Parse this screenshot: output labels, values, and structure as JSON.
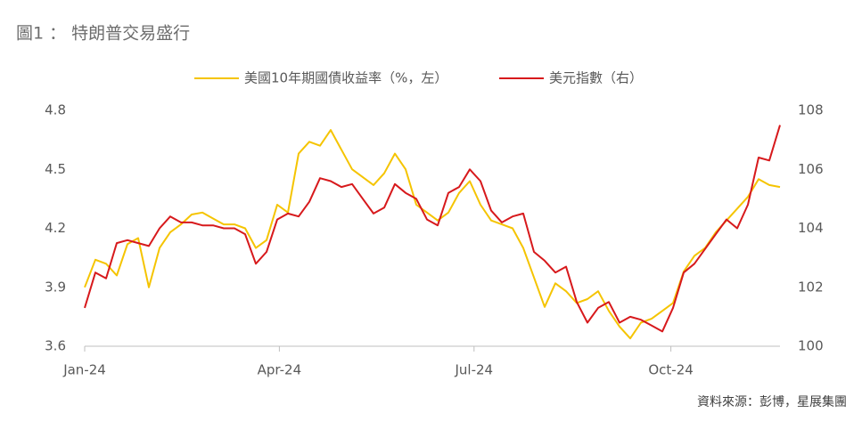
{
  "chart_data": {
    "type": "line",
    "title": "圖1 ： 特朗普交易盛行",
    "source": "資料來源：彭博，星展集團",
    "x": [
      0,
      5,
      10,
      15,
      20,
      25,
      30,
      35,
      40,
      45,
      50,
      55,
      60,
      65,
      70,
      75,
      80,
      85,
      90,
      95,
      100,
      105,
      110,
      115,
      120,
      125,
      130,
      135,
      140,
      145,
      150,
      155,
      160,
      165,
      170,
      175,
      180,
      185,
      190,
      195,
      200,
      205,
      210,
      215,
      220,
      225,
      230,
      235,
      240,
      245,
      250,
      255,
      260,
      265,
      270,
      275,
      280,
      285,
      290,
      295,
      300,
      305,
      310,
      315,
      320,
      325
    ],
    "xlim": [
      0,
      325
    ],
    "xticks": [
      {
        "value": 0,
        "label": "Jan-24"
      },
      {
        "value": 91,
        "label": "Apr-24"
      },
      {
        "value": 182,
        "label": "Jul-24"
      },
      {
        "value": 274,
        "label": "Oct-24"
      }
    ],
    "ylim": [
      3.6,
      4.8
    ],
    "yticks": [
      3.6,
      3.9,
      4.2,
      4.5,
      4.8
    ],
    "y2lim": [
      100,
      108
    ],
    "y2ticks": [
      100,
      102,
      104,
      106,
      108
    ],
    "grid": false,
    "legend": "top",
    "series": [
      {
        "name": "美國10年期國債收益率（%，左）",
        "color": "#f5c400",
        "axis": "y",
        "values": [
          3.9,
          4.04,
          4.02,
          3.96,
          4.12,
          4.15,
          3.9,
          4.1,
          4.18,
          4.22,
          4.27,
          4.28,
          4.25,
          4.22,
          4.22,
          4.2,
          4.1,
          4.14,
          4.32,
          4.28,
          4.58,
          4.64,
          4.62,
          4.7,
          4.6,
          4.5,
          4.46,
          4.42,
          4.48,
          4.58,
          4.5,
          4.32,
          4.28,
          4.24,
          4.28,
          4.38,
          4.44,
          4.32,
          4.24,
          4.22,
          4.2,
          4.1,
          3.95,
          3.8,
          3.92,
          3.88,
          3.82,
          3.84,
          3.88,
          3.78,
          3.7,
          3.64,
          3.72,
          3.74,
          3.78,
          3.82,
          3.98,
          4.06,
          4.1,
          4.18,
          4.24,
          4.3,
          4.36,
          4.45,
          4.42,
          4.41
        ]
      },
      {
        "name": "美元指數（右）",
        "color": "#d7191c",
        "axis": "y2",
        "values": [
          101.3,
          102.5,
          102.3,
          103.5,
          103.6,
          103.5,
          103.4,
          104,
          104.4,
          104.2,
          104.2,
          104.1,
          104.1,
          104,
          104,
          103.8,
          102.8,
          103.2,
          104.3,
          104.5,
          104.4,
          104.9,
          105.7,
          105.6,
          105.4,
          105.5,
          105,
          104.5,
          104.7,
          105.5,
          105.2,
          105,
          104.3,
          104.1,
          105.2,
          105.4,
          106,
          105.6,
          104.6,
          104.2,
          104.4,
          104.5,
          103.2,
          102.9,
          102.5,
          102.7,
          101.5,
          100.8,
          101.3,
          101.5,
          100.8,
          101,
          100.9,
          100.7,
          100.5,
          101.3,
          102.5,
          102.8,
          103.3,
          103.8,
          104.3,
          104,
          104.8,
          106.4,
          106.3,
          107.5
        ]
      }
    ]
  }
}
